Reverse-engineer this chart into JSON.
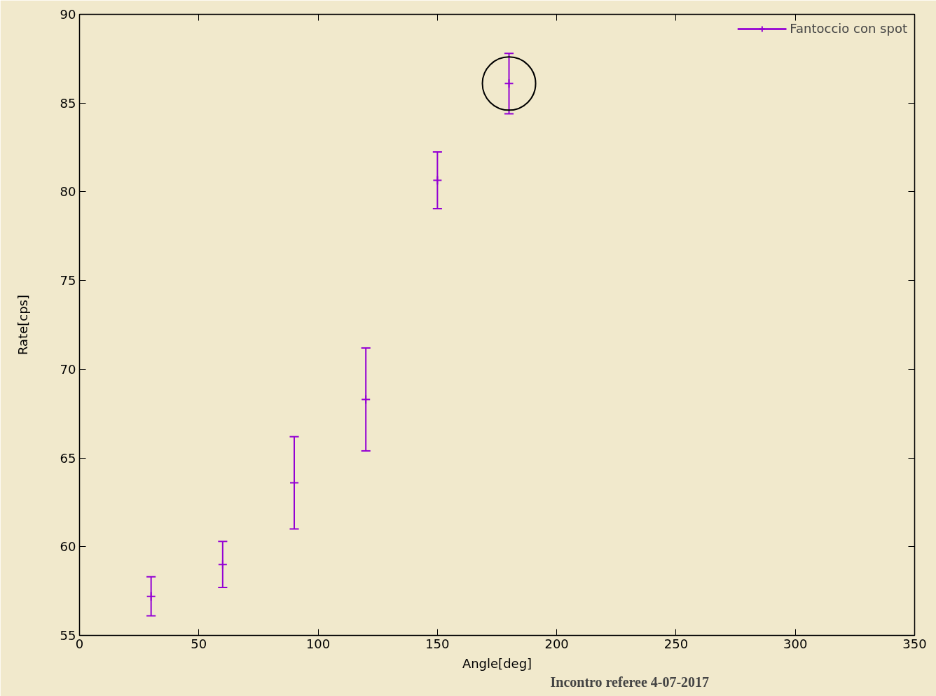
{
  "chart_data": {
    "type": "scatter",
    "xlabel": "Angle[deg]",
    "ylabel": "Rate[cps]",
    "x": [
      30,
      60,
      90,
      120,
      150,
      180
    ],
    "series": [
      {
        "name": "Fantoccio con spot",
        "color": "#9400d3",
        "values": [
          57.2,
          59.0,
          63.6,
          68.3,
          80.65,
          86.1
        ],
        "errors": [
          1.1,
          1.3,
          2.6,
          2.9,
          1.6,
          1.7
        ]
      }
    ],
    "xlim": [
      0,
      350
    ],
    "ylim": [
      55,
      90
    ],
    "xticks": [
      0,
      50,
      100,
      150,
      200,
      250,
      300,
      350
    ],
    "yticks": [
      55,
      60,
      65,
      70,
      75,
      80,
      85,
      90
    ],
    "grid": false,
    "legend": "top right",
    "marker": "cross",
    "annotations": [
      "Incontro referee 4-07-2017"
    ]
  }
}
